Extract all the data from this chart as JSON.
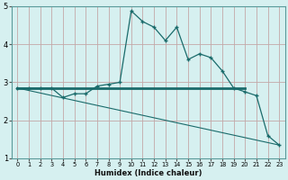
{
  "xlabel": "Humidex (Indice chaleur)",
  "background_color": "#d6f0f0",
  "grid_color": "#c4a8a8",
  "line_color": "#1a6b6b",
  "xlim": [
    -0.5,
    23.5
  ],
  "ylim": [
    1,
    5
  ],
  "yticks": [
    1,
    2,
    3,
    4,
    5
  ],
  "xticks": [
    0,
    1,
    2,
    3,
    4,
    5,
    6,
    7,
    8,
    9,
    10,
    11,
    12,
    13,
    14,
    15,
    16,
    17,
    18,
    19,
    20,
    21,
    22,
    23
  ],
  "curve1_x": [
    0,
    1,
    2,
    3,
    4,
    5,
    6,
    7,
    8,
    9,
    10,
    11,
    12,
    13,
    14,
    15,
    16,
    17,
    18,
    19,
    20,
    21,
    22,
    23
  ],
  "curve1_y": [
    2.85,
    2.85,
    2.85,
    2.85,
    2.6,
    2.7,
    2.7,
    2.9,
    2.95,
    3.0,
    4.88,
    4.6,
    4.45,
    4.1,
    4.45,
    3.6,
    3.75,
    3.65,
    3.3,
    2.85,
    2.75,
    2.65,
    1.6,
    1.35
  ],
  "curve2_x": [
    0,
    20
  ],
  "curve2_y": [
    2.85,
    2.85
  ],
  "curve3_x": [
    0,
    23
  ],
  "curve3_y": [
    2.85,
    1.35
  ],
  "marker_style": "+"
}
